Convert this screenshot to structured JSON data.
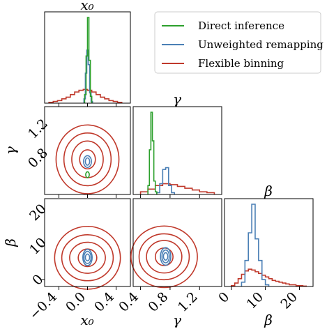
{
  "colors": {
    "direct": "#2ca02c",
    "unweighted": "#4a7fb5",
    "flexible": "#c0392b"
  },
  "legend": {
    "entries": [
      {
        "key": "direct",
        "label": "Direct inference"
      },
      {
        "key": "unweighted",
        "label": "Unweighted remapping"
      },
      {
        "key": "flexible",
        "label": "Flexible binning"
      }
    ]
  },
  "chart_data": {
    "type": "corner",
    "parameters": [
      "x0",
      "gamma",
      "beta"
    ],
    "param_labels": {
      "x0": "x₀",
      "gamma": "γ",
      "beta": "β"
    },
    "ranges": {
      "x0": [
        -0.6,
        0.6
      ],
      "gamma": [
        0.3,
        1.5
      ],
      "beta": [
        -2,
        24
      ]
    },
    "ticks": {
      "x0": {
        "values": [
          -0.4,
          0.0,
          0.4
        ],
        "labels": [
          "−0.4",
          "0.0",
          "0.4"
        ]
      },
      "gamma": {
        "values": [
          0.4,
          0.8,
          1.2
        ],
        "labels": [
          "0.4",
          "0.8",
          "1.2"
        ]
      },
      "beta": {
        "values": [
          0,
          10,
          20
        ],
        "labels": [
          "0",
          "10",
          "20"
        ]
      }
    },
    "y_ticks_gamma": {
      "values": [
        0.8,
        1.2
      ],
      "labels": [
        "0.8",
        "1.2"
      ]
    },
    "histograms": {
      "x0": [
        {
          "series": "flexible",
          "edges": [
            -0.54,
            -0.48,
            -0.42,
            -0.36,
            -0.3,
            -0.24,
            -0.18,
            -0.12,
            -0.06,
            0.0,
            0.06,
            0.12,
            0.18,
            0.24,
            0.3,
            0.36,
            0.42,
            0.48
          ],
          "counts": [
            0.01,
            0.02,
            0.03,
            0.05,
            0.07,
            0.1,
            0.13,
            0.15,
            0.16,
            0.15,
            0.13,
            0.1,
            0.07,
            0.05,
            0.03,
            0.02,
            0.01
          ]
        },
        {
          "series": "unweighted",
          "edges": [
            -0.05,
            -0.03,
            -0.01,
            0.01,
            0.03,
            0.05,
            0.07
          ],
          "counts": [
            0.05,
            0.35,
            0.62,
            0.45,
            0.12,
            0.02
          ]
        },
        {
          "series": "direct",
          "edges": [
            -0.04,
            -0.02,
            0.0,
            0.02,
            0.04,
            0.06
          ],
          "counts": [
            0.1,
            0.55,
            1.0,
            0.5,
            0.08
          ]
        }
      ],
      "gamma": [
        {
          "series": "flexible",
          "edges": [
            0.4,
            0.5,
            0.6,
            0.7,
            0.8,
            0.9,
            1.0,
            1.1,
            1.2,
            1.3,
            1.4
          ],
          "counts": [
            0.03,
            0.06,
            0.1,
            0.12,
            0.11,
            0.09,
            0.07,
            0.05,
            0.03,
            0.02
          ]
        },
        {
          "series": "unweighted",
          "edges": [
            0.62,
            0.66,
            0.7,
            0.74,
            0.78,
            0.82,
            0.86
          ],
          "counts": [
            0.02,
            0.12,
            0.28,
            0.3,
            0.1,
            0.02
          ]
        },
        {
          "series": "direct",
          "edges": [
            0.5,
            0.52,
            0.54,
            0.56,
            0.58,
            0.6,
            0.62
          ],
          "counts": [
            0.1,
            0.5,
            0.92,
            0.6,
            0.15,
            0.03
          ]
        }
      ],
      "beta": [
        {
          "series": "flexible",
          "edges": [
            0,
            1,
            2,
            3,
            4,
            5,
            6,
            7,
            8,
            9,
            10,
            11,
            12,
            13,
            14,
            15,
            16,
            17,
            18,
            19,
            20,
            21,
            22
          ],
          "counts": [
            0.01,
            0.04,
            0.09,
            0.14,
            0.18,
            0.2,
            0.19,
            0.17,
            0.15,
            0.13,
            0.11,
            0.09,
            0.07,
            0.06,
            0.05,
            0.04,
            0.03,
            0.02,
            0.02,
            0.01,
            0.01,
            0.005
          ]
        },
        {
          "series": "unweighted",
          "edges": [
            3,
            4,
            5,
            6,
            7,
            8,
            9,
            10,
            11
          ],
          "counts": [
            0.05,
            0.3,
            0.62,
            0.95,
            0.55,
            0.3,
            0.08,
            0.02
          ]
        }
      ]
    },
    "contours": {
      "x0_gamma": [
        {
          "series": "flexible",
          "center": [
            0.0,
            0.78
          ],
          "radii": [
            [
              0.11,
              0.13
            ],
            [
              0.22,
              0.25
            ],
            [
              0.33,
              0.36
            ],
            [
              0.44,
              0.47
            ]
          ]
        },
        {
          "series": "unweighted",
          "center": [
            0.0,
            0.75
          ],
          "radii": [
            [
              0.03,
              0.05
            ],
            [
              0.055,
              0.08
            ]
          ]
        },
        {
          "series": "direct",
          "center": [
            0.0,
            0.57
          ],
          "radii": [
            [
              0.025,
              0.04
            ]
          ]
        }
      ],
      "x0_beta": [
        {
          "series": "flexible",
          "center": [
            0.0,
            6.5
          ],
          "radii": [
            [
              0.13,
              2.6
            ],
            [
              0.25,
              4.6
            ],
            [
              0.36,
              6.8
            ],
            [
              0.46,
              9.3
            ]
          ]
        },
        {
          "series": "unweighted",
          "center": [
            0.0,
            6.6
          ],
          "radii": [
            [
              0.03,
              1.0
            ],
            [
              0.05,
              1.8
            ],
            [
              0.065,
              2.4
            ]
          ]
        }
      ],
      "gamma_beta": [
        {
          "series": "flexible",
          "center": [
            0.72,
            6.8
          ],
          "radii": [
            [
              0.12,
              2.6
            ],
            [
              0.24,
              4.8
            ],
            [
              0.34,
              6.8
            ],
            [
              0.45,
              9.1
            ]
          ]
        },
        {
          "series": "unweighted",
          "center": [
            0.74,
            6.9
          ],
          "radii": [
            [
              0.03,
              1.1
            ],
            [
              0.05,
              1.9
            ],
            [
              0.07,
              2.6
            ]
          ]
        }
      ]
    }
  }
}
